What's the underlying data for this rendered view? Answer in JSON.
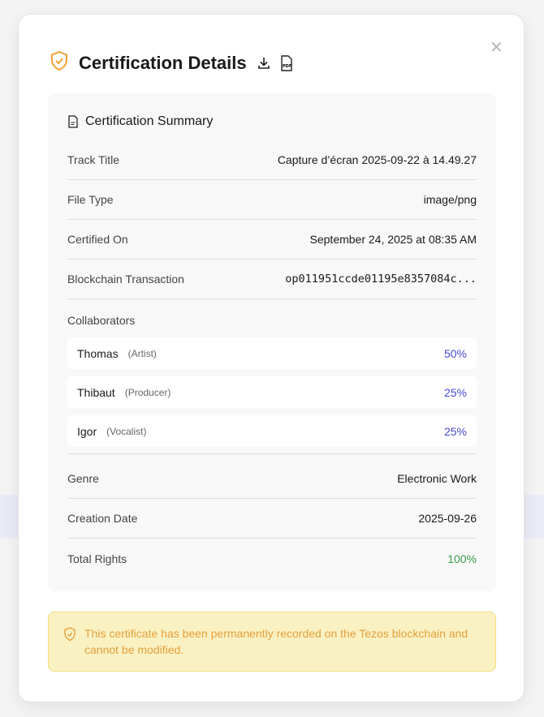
{
  "modal": {
    "title": "Certification Details",
    "icons": [
      "shield-check-icon",
      "download-icon",
      "pdf-icon",
      "close-icon"
    ]
  },
  "summary": {
    "heading": "Certification Summary",
    "rows": [
      {
        "label": "Track Title",
        "value": "Capture d’écran 2025-09-22 à 14.49.27"
      },
      {
        "label": "File Type",
        "value": "image/png"
      },
      {
        "label": "Certified On",
        "value": "September 24, 2025 at 08:35 AM"
      },
      {
        "label": "Blockchain Transaction",
        "value": "op011951ccde01195e8357084c..."
      }
    ],
    "collaborators_label": "Collaborators",
    "collaborators": [
      {
        "name": "Thomas",
        "role": "(Artist)",
        "share": "50%"
      },
      {
        "name": "Thibaut",
        "role": "(Producer)",
        "share": "25%"
      },
      {
        "name": "Igor",
        "role": "(Vocalist)",
        "share": "25%"
      }
    ],
    "rows2": [
      {
        "label": "Genre",
        "value": "Electronic Work"
      },
      {
        "label": "Creation Date",
        "value": "2025-09-26"
      },
      {
        "label": "Total Rights",
        "value": "100%"
      }
    ]
  },
  "notice": "This certificate has been permanently recorded on the Tezos blockchain and cannot be modified.",
  "colors": {
    "accent": "#f0a030",
    "share": "#4a4ad0",
    "total": "#3a9a4a",
    "notice_bg": "#faf1c2"
  }
}
